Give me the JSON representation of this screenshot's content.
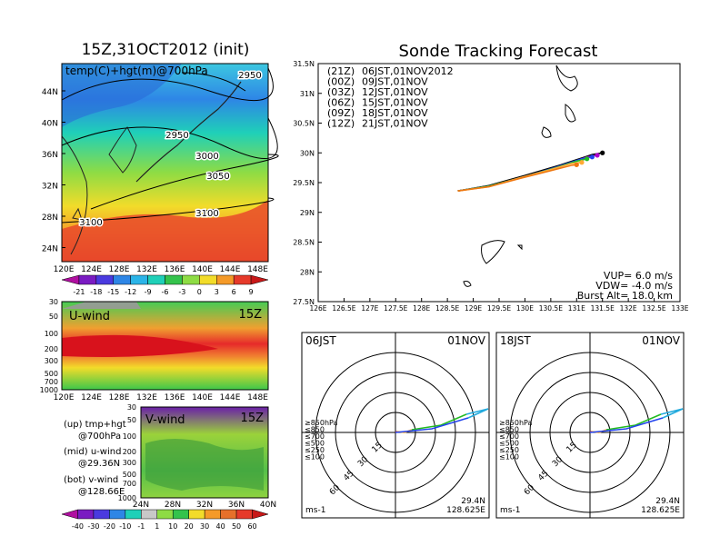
{
  "left": {
    "title": "15Z,31OCT2012 (init)",
    "map_label": "temp(C)+hgt(m)@700hPa",
    "lat_ticks": [
      "44N",
      "40N",
      "36N",
      "32N",
      "28N",
      "24N"
    ],
    "lon_ticks": [
      "120E",
      "124E",
      "128E",
      "132E",
      "136E",
      "140E",
      "144E",
      "148E"
    ],
    "contours": [
      "2950",
      "2950",
      "3000",
      "3050",
      "3100",
      "3100"
    ],
    "temp_colorbar": [
      "-21",
      "-18",
      "-15",
      "-12",
      "-9",
      "-6",
      "-3",
      "0",
      "3",
      "6",
      "9"
    ],
    "u_panel": {
      "label": "U-wind",
      "time": "15Z",
      "yticks": [
        "30",
        "50",
        "100",
        "200",
        "300",
        "500",
        "700",
        "1000"
      ]
    },
    "v_panel": {
      "label": "V-wind",
      "time": "15Z",
      "yticks": [
        "30",
        "50",
        "100",
        "200",
        "300",
        "500",
        "700",
        "1000"
      ],
      "lat_ticks": [
        "24N",
        "28N",
        "32N",
        "36N",
        "40N"
      ]
    },
    "legend": [
      "(up) tmp+hgt",
      "@700hPa",
      "(mid) u-wind",
      "@29.36N",
      "(bot) v-wind",
      "@128.66E"
    ],
    "wind_colorbar": [
      "-40",
      "-30",
      "-20",
      "-10",
      "-1",
      "1",
      "10",
      "20",
      "30",
      "40",
      "50",
      "60"
    ]
  },
  "track": {
    "title": "Sonde Tracking Forecast",
    "lat_ticks": [
      "31.5N",
      "31N",
      "30.5N",
      "30N",
      "29.5N",
      "29N",
      "28.5N",
      "28N",
      "27.5N"
    ],
    "lon_ticks": [
      "126E",
      "126.5E",
      "127E",
      "127.5E",
      "128E",
      "128.5E",
      "129E",
      "129.5E",
      "130E",
      "130.5E",
      "131E",
      "131.5E",
      "132E",
      "132.5E",
      "133E"
    ],
    "legend": [
      {
        "code": "(21Z)",
        "time": "06JST,01NOV2012",
        "color": "#000000"
      },
      {
        "code": "(00Z)",
        "time": "09JST,01NOV",
        "color": "#aa00cc"
      },
      {
        "code": "(03Z)",
        "time": "12JST,01NOV",
        "color": "#2244ee"
      },
      {
        "code": "(06Z)",
        "time": "15JST,01NOV",
        "color": "#22bb22"
      },
      {
        "code": "(09Z)",
        "time": "18JST,01NOV",
        "color": "#ffaa33"
      },
      {
        "code": "(12Z)",
        "time": "21JST,01NOV",
        "color": "#ee7711"
      }
    ],
    "params": [
      "VUP=  6.0  m/s",
      "VDW= -4.0  m/s",
      "Burst Alt=  18.0  km"
    ]
  },
  "polar_left": {
    "time": "06JST",
    "date": "01NOV",
    "rings": [
      "15",
      "30",
      "45",
      "60"
    ],
    "levels": [
      "≥850hPa",
      "≤850",
      "≤700",
      "≤500",
      "≤250",
      "≤100"
    ],
    "unit": "ms-1",
    "lat": "29.4N",
    "lon": "128.625E"
  },
  "polar_right": {
    "time": "18JST",
    "date": "01NOV",
    "rings": [
      "15",
      "30",
      "45",
      "60"
    ],
    "levels": [
      "≥850hPa",
      "≤850",
      "≤700",
      "≤500",
      "≤250",
      "≤100"
    ],
    "unit": "ms-1",
    "lat": "29.4N",
    "lon": "128.625E"
  },
  "chart_data": [
    {
      "type": "heatmap",
      "title": "15Z,31OCT2012 (init)",
      "field": "temp(C)+hgt(m)@700hPa",
      "xlim": [
        120,
        150
      ],
      "ylim": [
        22,
        48
      ],
      "color_levels": [
        -21,
        -18,
        -15,
        -12,
        -9,
        -6,
        -3,
        0,
        3,
        6,
        9
      ],
      "contour_labels": [
        2950,
        2950,
        3000,
        3050,
        3100,
        3100
      ]
    },
    {
      "type": "line",
      "title": "Sonde Tracking Forecast",
      "xlim": [
        126,
        133
      ],
      "ylim": [
        27.5,
        31.5
      ],
      "series": [
        {
          "name": "06JST,01NOV2012",
          "color": "#000000",
          "x": [
            128.7,
            129.3,
            130.0,
            130.7,
            131.3,
            131.5
          ],
          "y": [
            29.36,
            29.45,
            29.62,
            29.8,
            29.97,
            30.0
          ]
        },
        {
          "name": "09JST,01NOV",
          "color": "#aa00cc",
          "x": [
            128.7,
            129.3,
            130.0,
            130.7,
            131.2,
            131.4
          ],
          "y": [
            29.36,
            29.44,
            29.6,
            29.77,
            29.93,
            29.96
          ]
        },
        {
          "name": "12JST,01NOV",
          "color": "#2244ee",
          "x": [
            128.7,
            129.3,
            130.0,
            130.6,
            131.1,
            131.3
          ],
          "y": [
            29.36,
            29.44,
            29.6,
            29.76,
            29.9,
            29.93
          ]
        },
        {
          "name": "15JST,01NOV",
          "color": "#22bb22",
          "x": [
            128.7,
            129.3,
            130.0,
            130.6,
            131.0,
            131.2
          ],
          "y": [
            29.36,
            29.44,
            29.6,
            29.75,
            29.86,
            29.9
          ]
        },
        {
          "name": "18JST,01NOV",
          "color": "#ffaa33",
          "x": [
            128.7,
            129.3,
            129.9,
            130.5,
            130.9,
            131.1
          ],
          "y": [
            29.36,
            29.43,
            29.58,
            29.72,
            29.82,
            29.84
          ]
        },
        {
          "name": "21JST,01NOV",
          "color": "#ee7711",
          "x": [
            128.7,
            129.3,
            129.9,
            130.5,
            130.9,
            131.0
          ],
          "y": [
            29.36,
            29.43,
            29.57,
            29.7,
            29.79,
            29.8
          ]
        }
      ]
    }
  ]
}
